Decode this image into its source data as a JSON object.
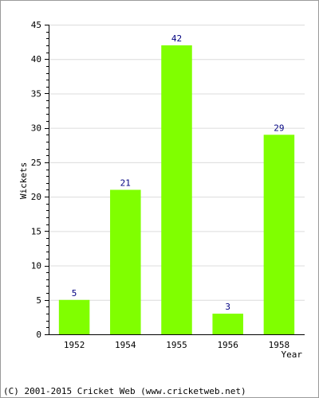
{
  "chart_data": {
    "type": "bar",
    "categories": [
      "1952",
      "1954",
      "1955",
      "1956",
      "1958"
    ],
    "values": [
      5,
      21,
      42,
      3,
      29
    ],
    "xlabel": "Year",
    "ylabel": "Wickets",
    "ylim": [
      0,
      45
    ],
    "yticks": [
      0,
      5,
      10,
      15,
      20,
      25,
      30,
      35,
      40,
      45
    ],
    "grid": true,
    "bar_color": "#80ff00",
    "label_color": "#000080",
    "data_labels": [
      "5",
      "21",
      "42",
      "3",
      "29"
    ]
  },
  "footer": "(C) 2001-2015 Cricket Web (www.cricketweb.net)"
}
